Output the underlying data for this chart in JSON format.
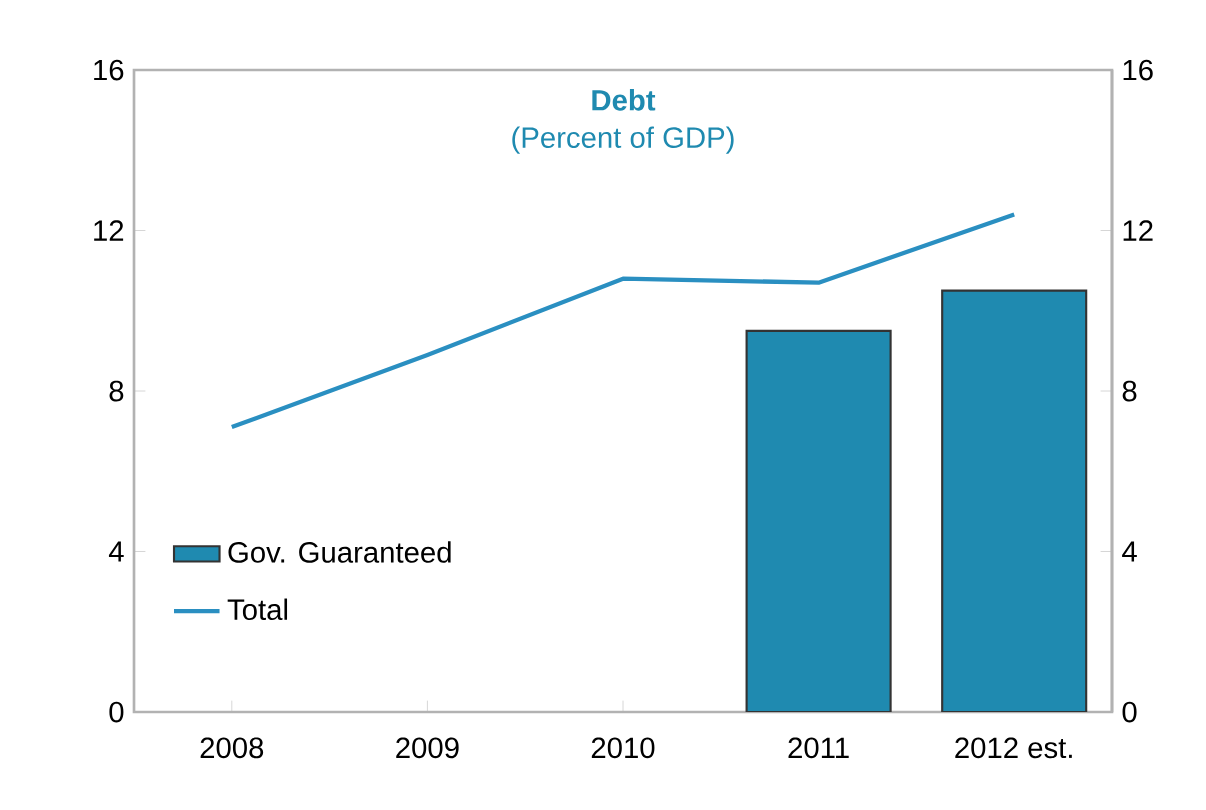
{
  "chart_data": {
    "type": "bar",
    "title": "Debt",
    "subtitle": "(Percent of GDP)",
    "categories": [
      "2008",
      "2009",
      "2010",
      "2011",
      "2012 est."
    ],
    "series": [
      {
        "name": "Gov. Guaranteed",
        "color": "#1f8ab0",
        "values": [
          null,
          null,
          null,
          9.5,
          10.5
        ]
      },
      {
        "name": "Total",
        "type": "line",
        "color": "#2a8fc1",
        "values": [
          7.1,
          8.9,
          10.8,
          10.7,
          12.4
        ]
      }
    ],
    "ylim": [
      0,
      16
    ],
    "yticks": [
      0,
      4,
      8,
      12,
      16
    ],
    "y2lim": [
      0,
      16
    ],
    "y2ticks": [
      0,
      4,
      8,
      12,
      16
    ],
    "legend": "bottom left"
  }
}
